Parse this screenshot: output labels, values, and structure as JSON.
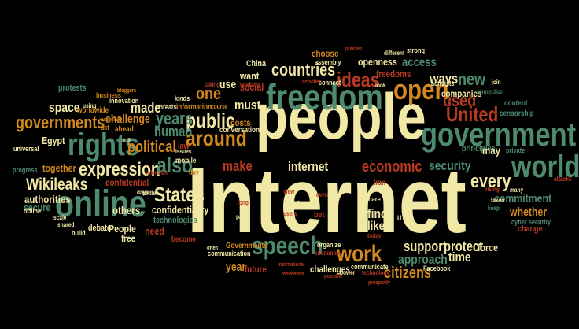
{
  "palette": {
    "background": "#000000",
    "cream": "#f2e8a6",
    "orange": "#d2881e",
    "red": "#b83a22",
    "green": "#4e8a6e",
    "dark_green": "#3d6f58"
  },
  "words": [
    {
      "text": "Internet",
      "color": "cream"
    },
    {
      "text": "people",
      "color": "cream"
    },
    {
      "text": "freedom",
      "color": "green"
    },
    {
      "text": "government",
      "color": "green"
    },
    {
      "text": "online",
      "color": "green"
    },
    {
      "text": "rights",
      "color": "green"
    },
    {
      "text": "open",
      "color": "orange"
    },
    {
      "text": "world",
      "color": "green"
    },
    {
      "text": "United",
      "color": "red"
    },
    {
      "text": "speech",
      "color": "green"
    },
    {
      "text": "work",
      "color": "orange"
    },
    {
      "text": "expression",
      "color": "cream"
    },
    {
      "text": "around",
      "color": "orange"
    },
    {
      "text": "public",
      "color": "cream"
    },
    {
      "text": "States",
      "color": "cream"
    },
    {
      "text": "ideas",
      "color": "red"
    },
    {
      "text": "countries",
      "color": "cream"
    },
    {
      "text": "governments",
      "color": "orange"
    },
    {
      "text": "Wikileaks",
      "color": "cream"
    },
    {
      "text": "economic",
      "color": "red"
    },
    {
      "text": "political",
      "color": "orange"
    },
    {
      "text": "also",
      "color": "green"
    },
    {
      "text": "every",
      "color": "cream"
    },
    {
      "text": "security",
      "color": "green"
    },
    {
      "text": "internet",
      "color": "cream"
    },
    {
      "text": "support",
      "color": "cream"
    },
    {
      "text": "protect",
      "color": "cream"
    },
    {
      "text": "human",
      "color": "green"
    },
    {
      "text": "years",
      "color": "green"
    },
    {
      "text": "new",
      "color": "green"
    },
    {
      "text": "ways",
      "color": "cream"
    },
    {
      "text": "used",
      "color": "red"
    },
    {
      "text": "access",
      "color": "green"
    },
    {
      "text": "make",
      "color": "red"
    },
    {
      "text": "must",
      "color": "cream"
    },
    {
      "text": "one",
      "color": "orange"
    },
    {
      "text": "use",
      "color": "cream"
    },
    {
      "text": "social",
      "color": "red"
    },
    {
      "text": "want",
      "color": "cream"
    },
    {
      "text": "made",
      "color": "cream"
    },
    {
      "text": "space",
      "color": "cream"
    },
    {
      "text": "Egypt",
      "color": "cream"
    },
    {
      "text": "authorities",
      "color": "cream"
    },
    {
      "text": "secure",
      "color": "green"
    },
    {
      "text": "together",
      "color": "orange"
    },
    {
      "text": "challenge",
      "color": "orange"
    },
    {
      "text": "confidential",
      "color": "red"
    },
    {
      "text": "confidentiality",
      "color": "cream"
    },
    {
      "text": "citizens",
      "color": "orange"
    },
    {
      "text": "approach",
      "color": "green"
    },
    {
      "text": "time",
      "color": "cream"
    },
    {
      "text": "force",
      "color": "cream"
    },
    {
      "text": "commitment",
      "color": "green"
    },
    {
      "text": "whether",
      "color": "orange"
    },
    {
      "text": "others",
      "color": "cream"
    },
    {
      "text": "People",
      "color": "cream"
    },
    {
      "text": "free",
      "color": "cream"
    },
    {
      "text": "need",
      "color": "red"
    },
    {
      "text": "year",
      "color": "orange"
    },
    {
      "text": "future",
      "color": "red"
    },
    {
      "text": "challenges",
      "color": "cream"
    },
    {
      "text": "find",
      "color": "cream"
    },
    {
      "text": "like",
      "color": "cream"
    },
    {
      "text": "just",
      "color": "cream"
    },
    {
      "text": "companies",
      "color": "cream"
    },
    {
      "text": "openness",
      "color": "cream"
    },
    {
      "text": "freedoms",
      "color": "red"
    },
    {
      "text": "China",
      "color": "cream"
    },
    {
      "text": "choose",
      "color": "orange"
    },
    {
      "text": "protests",
      "color": "green"
    },
    {
      "text": "costs",
      "color": "orange"
    },
    {
      "text": "technologies",
      "color": "green"
    },
    {
      "text": "debate",
      "color": "cream"
    },
    {
      "text": "conversation",
      "color": "cream"
    },
    {
      "text": "censorship",
      "color": "green"
    },
    {
      "text": "content",
      "color": "green"
    },
    {
      "text": "change",
      "color": "red"
    },
    {
      "text": "principles",
      "color": "green"
    },
    {
      "text": "may",
      "color": "cream"
    },
    {
      "text": "private",
      "color": "green"
    },
    {
      "text": "Facebook",
      "color": "cream"
    },
    {
      "text": "communicate",
      "color": "cream"
    },
    {
      "text": "organize",
      "color": "cream"
    },
    {
      "text": "share",
      "color": "cream"
    },
    {
      "text": "bet",
      "color": "red"
    },
    {
      "text": "law",
      "color": "red"
    },
    {
      "text": "mobile",
      "color": "cream"
    },
    {
      "text": "innovation",
      "color": "cream"
    },
    {
      "text": "information",
      "color": "orange"
    },
    {
      "text": "worldwide",
      "color": "orange"
    },
    {
      "text": "threats",
      "color": "cream"
    },
    {
      "text": "kinds",
      "color": "cream"
    },
    {
      "text": "Governments",
      "color": "orange"
    },
    {
      "text": "communication",
      "color": "cream"
    },
    {
      "text": "become",
      "color": "red"
    },
    {
      "text": "build",
      "color": "cream"
    },
    {
      "text": "offline",
      "color": "cream"
    },
    {
      "text": "universal",
      "color": "cream"
    },
    {
      "text": "progress",
      "color": "green"
    },
    {
      "text": "business",
      "color": "orange"
    },
    {
      "text": "ahead",
      "color": "orange"
    },
    {
      "text": "cyber security",
      "color": "green"
    },
    {
      "text": "Iran",
      "color": "red"
    },
    {
      "text": "U.S",
      "color": "cream"
    },
    {
      "text": "strong",
      "color": "cream"
    },
    {
      "text": "activists",
      "color": "cream"
    },
    {
      "text": "connect",
      "color": "cream"
    },
    {
      "text": "assembly",
      "color": "cream"
    },
    {
      "text": "different",
      "color": "cream"
    },
    {
      "text": "working",
      "color": "red"
    },
    {
      "text": "taking",
      "color": "red"
    },
    {
      "text": "course",
      "color": "orange"
    },
    {
      "text": "using",
      "color": "cream"
    },
    {
      "text": "full",
      "color": "cream"
    },
    {
      "text": "day",
      "color": "orange"
    },
    {
      "text": "today",
      "color": "red"
    },
    {
      "text": "power",
      "color": "cream"
    },
    {
      "text": "technology",
      "color": "red"
    },
    {
      "text": "possible",
      "color": "red"
    },
    {
      "text": "connection",
      "color": "green"
    },
    {
      "text": "keep",
      "color": "green"
    },
    {
      "text": "taken",
      "color": "cream"
    },
    {
      "text": "rising",
      "color": "red"
    },
    {
      "text": "many",
      "color": "cream"
    },
    {
      "text": "attacks",
      "color": "red"
    },
    {
      "text": "part",
      "color": "cream"
    },
    {
      "text": "users",
      "color": "red"
    },
    {
      "text": "even",
      "color": "red"
    },
    {
      "text": "view",
      "color": "red"
    },
    {
      "text": "often",
      "color": "cream"
    },
    {
      "text": "days",
      "color": "cream"
    },
    {
      "text": "shared",
      "color": "cream"
    },
    {
      "text": "scale",
      "color": "cream"
    },
    {
      "text": "especially",
      "color": "orange"
    },
    {
      "text": "act",
      "color": "orange"
    },
    {
      "text": "bloggers",
      "color": "orange"
    },
    {
      "text": "twitter",
      "color": "cream"
    },
    {
      "text": "tolerance",
      "color": "red"
    },
    {
      "text": "long",
      "color": "red"
    },
    {
      "text": "issues",
      "color": "cream"
    },
    {
      "text": "international",
      "color": "red"
    },
    {
      "text": "movement",
      "color": "red"
    },
    {
      "text": "prosperity",
      "color": "red"
    },
    {
      "text": "policies",
      "color": "red"
    },
    {
      "text": "look",
      "color": "cream"
    },
    {
      "text": "activities",
      "color": "red"
    },
    {
      "text": "join",
      "color": "cream"
    },
    {
      "text": "encounter",
      "color": "red"
    }
  ]
}
